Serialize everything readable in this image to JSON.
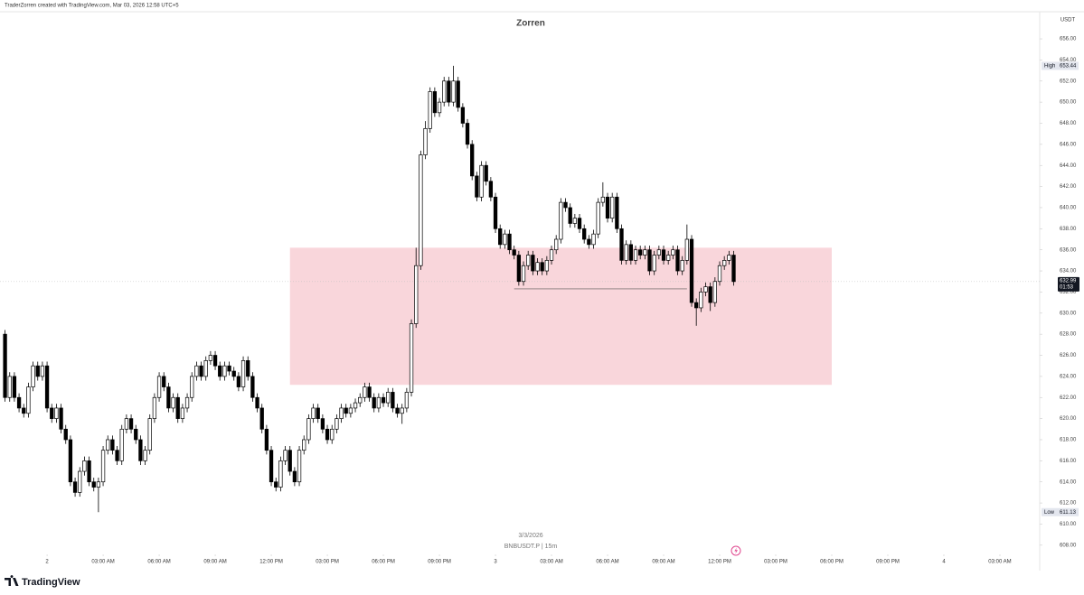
{
  "header": "TraderZorren created with TradingView.com, Mar 03, 2026 12:58 UTC+5",
  "chart_data": {
    "type": "candlestick",
    "title": "Zorren",
    "symbol": "BNBUSDT.P | 15m",
    "date_label": "3/3/2026",
    "y_axis_label": "USDT",
    "up_color": "#ffffff",
    "down_color": "#000000",
    "x": [
      -2.25,
      -2,
      -1.75,
      -1.5,
      -1.25,
      -1,
      -0.75,
      -0.5,
      -0.25,
      0,
      0.25,
      0.5,
      0.75,
      1,
      1.25,
      1.5,
      1.75,
      2,
      2.25,
      2.5,
      2.75,
      3,
      3.25,
      3.5,
      3.75,
      4,
      4.25,
      4.5,
      4.75,
      5,
      5.25,
      5.5,
      5.75,
      6,
      6.25,
      6.5,
      6.75,
      7,
      7.25,
      7.5,
      7.75,
      8,
      8.25,
      8.5,
      8.75,
      9,
      9.25,
      9.5,
      9.75,
      10,
      10.25,
      10.5,
      10.75,
      11,
      11.25,
      11.5,
      11.75,
      12,
      12.25,
      12.5,
      12.75,
      13,
      13.25,
      13.5,
      13.75,
      14,
      14.25,
      14.5,
      14.75,
      15,
      15.25,
      15.5,
      15.75,
      16,
      16.25,
      16.5,
      16.75,
      17,
      17.25,
      17.5,
      17.75,
      18,
      18.25,
      18.5,
      18.75,
      19,
      19.25,
      19.5,
      19.75,
      20,
      20.25,
      20.5,
      20.75,
      21,
      21.25,
      21.5,
      21.75,
      22,
      22.25,
      22.5,
      22.75,
      23,
      23.25,
      23.5,
      23.75,
      24,
      24.25,
      24.5,
      24.75,
      25,
      25.25,
      25.5,
      25.75,
      26,
      26.25,
      26.5,
      26.75,
      27,
      27.25,
      27.5,
      27.75,
      28,
      28.25,
      28.5,
      28.75,
      29,
      29.25,
      29.5,
      29.75,
      30,
      30.25,
      30.5,
      30.75,
      31,
      31.25,
      31.5,
      31.75,
      32,
      32.25,
      32.5,
      32.75,
      33,
      33.25,
      33.5,
      33.75,
      34,
      34.25,
      34.5,
      34.75,
      35,
      35.25,
      35.5,
      35.75,
      36,
      36.25,
      36.5,
      36.75
    ],
    "series": [
      {
        "open": [
          628,
          622,
          624,
          622,
          621,
          620.5,
          623,
          625,
          624,
          625,
          621,
          620,
          621,
          619,
          618,
          614,
          613,
          615,
          616,
          614,
          613.5,
          614,
          617,
          618,
          617,
          616,
          619,
          620,
          619,
          618,
          616,
          617,
          620,
          622,
          624,
          623,
          621,
          622,
          620,
          621,
          622,
          624,
          625,
          624,
          625.5,
          626,
          625,
          624,
          625,
          624.5,
          624,
          623,
          625.5,
          624,
          622,
          621,
          619,
          617,
          614,
          613.5,
          616,
          617,
          615,
          614,
          617,
          618,
          620,
          621,
          620,
          619,
          618,
          619,
          620,
          621,
          620.5,
          621,
          621.5,
          622,
          623,
          622,
          621,
          622,
          621.5,
          622.5,
          621,
          620.5,
          621,
          622.5,
          629,
          634.5,
          645,
          647.5,
          651,
          649,
          650,
          652,
          650,
          652,
          649.5,
          648,
          646,
          643,
          641,
          644,
          642.5,
          641,
          638,
          636.5,
          637.5,
          636,
          635.5,
          633,
          634.5,
          635.5,
          634,
          634.8,
          634,
          635,
          636,
          637,
          640.5,
          640,
          638.5,
          639,
          638,
          637,
          636.5,
          637.5,
          640.5,
          641,
          639,
          641,
          638,
          635,
          636.5,
          635,
          636,
          635.5,
          636,
          634,
          635.5,
          636,
          635,
          635.5,
          636,
          634,
          635,
          637,
          631,
          630.5,
          632,
          632.5,
          631,
          633,
          634.5,
          635,
          635.5
        ],
        "high": [
          628.4,
          624.4,
          624.4,
          622.4,
          621.4,
          623.4,
          625.4,
          625.4,
          625.4,
          625.4,
          621.4,
          621.4,
          621.4,
          619.4,
          618.4,
          614.4,
          615.4,
          616.4,
          616.4,
          614.4,
          614.4,
          617.4,
          618.4,
          618.4,
          617.4,
          619.4,
          620.4,
          620.4,
          619.4,
          618.4,
          617.4,
          620.4,
          622.4,
          624.4,
          624.4,
          623.4,
          622.4,
          622.4,
          621.4,
          622.4,
          624.4,
          625.4,
          625.4,
          625.9,
          626.4,
          626.4,
          625.4,
          625.4,
          625.4,
          624.9,
          624.4,
          625.9,
          625.9,
          624.4,
          622.4,
          621.4,
          619.4,
          617.4,
          614.4,
          616.4,
          617.4,
          617.4,
          615.4,
          617.4,
          618.4,
          620.4,
          621.4,
          621.4,
          620.4,
          619.4,
          619.4,
          620.4,
          621.4,
          621.4,
          621.4,
          621.9,
          622.4,
          623.4,
          623.4,
          622.4,
          622.4,
          622.4,
          622.9,
          622.9,
          621.4,
          621.4,
          622.9,
          629.4,
          636.2,
          645.4,
          648.2,
          651.4,
          651.4,
          650.4,
          652.4,
          652.4,
          653.44,
          652.4,
          649.9,
          648.4,
          646.4,
          643.4,
          644.4,
          644.4,
          642.9,
          641.4,
          638.4,
          637.9,
          637.9,
          636.4,
          635.9,
          634.9,
          635.9,
          635.9,
          635.2,
          635.2,
          635.4,
          636.4,
          637.4,
          640.9,
          640.9,
          640.4,
          639.4,
          639.4,
          638.4,
          637.4,
          637.9,
          640.9,
          642.4,
          641.4,
          641.4,
          641.4,
          638.4,
          636.9,
          636.9,
          636.4,
          636.4,
          636.4,
          636.4,
          635.9,
          636.4,
          636.4,
          635.9,
          636.4,
          636.4,
          635.4,
          638.4,
          637.4,
          631.4,
          632.4,
          632.9,
          632.9,
          633.4,
          634.9,
          635.4,
          635.9,
          635.9
        ],
        "low": [
          621.6,
          621.6,
          621.6,
          620.6,
          620.1,
          620.1,
          622.6,
          623.6,
          623.6,
          620.6,
          619.6,
          619.6,
          618.6,
          617.6,
          613.6,
          612.6,
          612.6,
          614.6,
          613.6,
          613.1,
          611.13,
          613.6,
          616.6,
          616.6,
          615.6,
          615.6,
          618.6,
          618.6,
          617.6,
          615.6,
          615.6,
          616.6,
          619.6,
          621.6,
          622.6,
          620.6,
          620.6,
          619.6,
          619.6,
          620.6,
          621.6,
          623.6,
          623.6,
          623.6,
          625.1,
          624.6,
          623.6,
          623.6,
          624.1,
          623.6,
          622.6,
          622.6,
          623.6,
          621.6,
          620.6,
          618.6,
          616.6,
          613.6,
          613.1,
          613.1,
          615.6,
          614.6,
          613.6,
          613.6,
          616.6,
          617.6,
          619.6,
          619.6,
          618.6,
          617.6,
          617.6,
          618.6,
          619.6,
          620.1,
          620.1,
          620.6,
          621.1,
          621.6,
          621.6,
          620.6,
          620.6,
          621.1,
          621.1,
          620.6,
          620.1,
          619.5,
          620.6,
          622.1,
          628.6,
          634.1,
          644.6,
          647.1,
          648.6,
          648.6,
          649.6,
          649.6,
          649.6,
          649.1,
          647.6,
          645.6,
          642.6,
          640.6,
          640.6,
          642.1,
          640.6,
          637.6,
          636.1,
          636.1,
          635.6,
          635.1,
          632.6,
          632.6,
          634.1,
          633.6,
          633.6,
          633.6,
          633.6,
          634.6,
          635.6,
          636.6,
          639.6,
          638.1,
          638.1,
          637.6,
          636.6,
          636.1,
          636.1,
          637.1,
          640.1,
          638.6,
          638.6,
          637.6,
          634.6,
          634.6,
          634.6,
          634.6,
          635.1,
          635.1,
          633.6,
          633.6,
          635.1,
          634.6,
          634.6,
          635.1,
          633.6,
          633.6,
          634.6,
          630.6,
          628.8,
          630.1,
          631.6,
          630.2,
          630.6,
          632.6,
          634.1,
          634.6,
          632.6
        ],
        "close": [
          622,
          624,
          622,
          621,
          620.5,
          623,
          625,
          624,
          625,
          621,
          620,
          621,
          619,
          618,
          614,
          613,
          615,
          616,
          614,
          613.5,
          614,
          617,
          618,
          617,
          616,
          619,
          620,
          619,
          618,
          616,
          617,
          620,
          622,
          624,
          623,
          621,
          622,
          620,
          621,
          622,
          624,
          625,
          624,
          625.5,
          626,
          625,
          624,
          625,
          624.5,
          624,
          623,
          625.5,
          624,
          622,
          621,
          619,
          617,
          614,
          613.5,
          616,
          617,
          615,
          614,
          617,
          618,
          620,
          621,
          620,
          619,
          618,
          619,
          620,
          621,
          620.5,
          621,
          621.5,
          622,
          623,
          622,
          621,
          622,
          621.5,
          622.5,
          621,
          620.5,
          621,
          622.5,
          629,
          634.5,
          645,
          647.5,
          651,
          649,
          650,
          652,
          650,
          652,
          649.5,
          648,
          646,
          643,
          641,
          644,
          642.5,
          641,
          638,
          636.5,
          637.5,
          636,
          635.5,
          633,
          634.5,
          635.5,
          634,
          634.8,
          634,
          635,
          636,
          637,
          640.5,
          640,
          638.5,
          639,
          638,
          637,
          636.5,
          637.5,
          640.5,
          641,
          639,
          641,
          638,
          635,
          636.5,
          635,
          636,
          635.5,
          636,
          634,
          635.5,
          636,
          635,
          635.5,
          636,
          634,
          635,
          637,
          631,
          630.5,
          632,
          632.5,
          631,
          633,
          634.5,
          635,
          635.5,
          632.99
        ]
      }
    ],
    "high_marker": {
      "label": "High",
      "value": 653.44
    },
    "low_marker": {
      "label": "Low",
      "value": 611.13
    },
    "countdown": "01:53",
    "zones": [
      {
        "y": [
          623.2,
          636.2
        ],
        "x": [
          13,
          42
        ],
        "color": "#f9d6db"
      }
    ],
    "lines": [
      {
        "y": 632.3,
        "x": [
          25,
          34.25
        ],
        "color": "#555555"
      }
    ],
    "xlim": [
      -2.52,
      53.13
    ],
    "ylim": [
      607.3,
      658.57
    ],
    "xticks": [
      {
        "value": 0,
        "label": "2"
      },
      {
        "value": 3,
        "label": "03:00 AM"
      },
      {
        "value": 6,
        "label": "06:00 AM"
      },
      {
        "value": 9,
        "label": "09:00 AM"
      },
      {
        "value": 12,
        "label": "12:00 PM"
      },
      {
        "value": 15,
        "label": "03:00 PM"
      },
      {
        "value": 18,
        "label": "06:00 PM"
      },
      {
        "value": 21,
        "label": "09:00 PM"
      },
      {
        "value": 24,
        "label": "3"
      },
      {
        "value": 27,
        "label": "03:00 AM"
      },
      {
        "value": 30,
        "label": "06:00 AM"
      },
      {
        "value": 33,
        "label": "09:00 AM"
      },
      {
        "value": 36,
        "label": "12:00 PM"
      },
      {
        "value": 39,
        "label": "03:00 PM"
      },
      {
        "value": 42,
        "label": "06:00 PM"
      },
      {
        "value": 45,
        "label": "09:00 PM"
      },
      {
        "value": 48,
        "label": "4"
      },
      {
        "value": 51,
        "label": "03:00 AM"
      }
    ],
    "yticks": [
      {
        "value": 608,
        "label": "608.00"
      },
      {
        "value": 610,
        "label": "610.00"
      },
      {
        "value": 612,
        "label": "612.00"
      },
      {
        "value": 614,
        "label": "614.00"
      },
      {
        "value": 616,
        "label": "616.00"
      },
      {
        "value": 618,
        "label": "618.00"
      },
      {
        "value": 620,
        "label": "620.00"
      },
      {
        "value": 622,
        "label": "622.00"
      },
      {
        "value": 624,
        "label": "624.00"
      },
      {
        "value": 626,
        "label": "626.00"
      },
      {
        "value": 628,
        "label": "628.00"
      },
      {
        "value": 630,
        "label": "630.00"
      },
      {
        "value": 632,
        "label": "632.00"
      },
      {
        "value": 634,
        "label": "634.00"
      },
      {
        "value": 636,
        "label": "636.00"
      },
      {
        "value": 638,
        "label": "638.00"
      },
      {
        "value": 640,
        "label": "640.00"
      },
      {
        "value": 642,
        "label": "642.00"
      },
      {
        "value": 644,
        "label": "644.00"
      },
      {
        "value": 646,
        "label": "646.00"
      },
      {
        "value": 648,
        "label": "648.00"
      },
      {
        "value": 650,
        "label": "650.00"
      },
      {
        "value": 652,
        "label": "652.00"
      },
      {
        "value": 654,
        "label": "654.00"
      },
      {
        "value": 656,
        "label": "656.00"
      }
    ]
  },
  "footer": {
    "brand": "TradingView"
  }
}
